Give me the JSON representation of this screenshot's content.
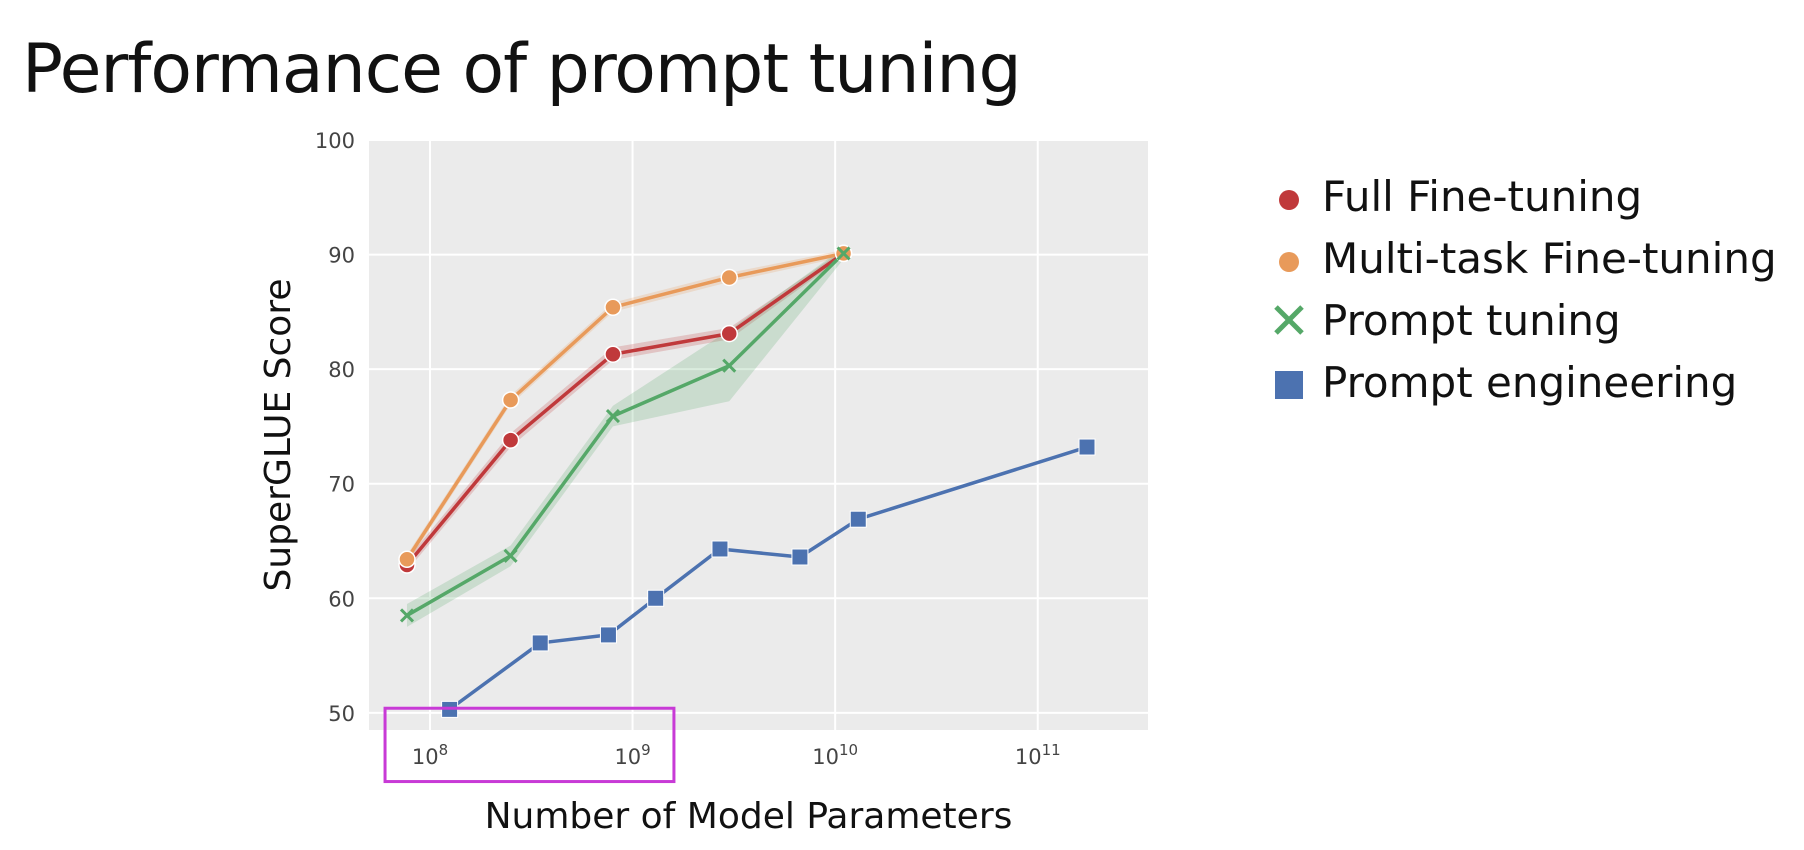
{
  "title": "Performance of prompt tuning",
  "colors": {
    "background": "#ffffff",
    "plot_bg": "#ebebeb",
    "grid": "#ffffff",
    "highlight_box": "#c83ad6"
  },
  "chart_data": {
    "type": "line",
    "title": "",
    "xlabel": "Number of Model Parameters",
    "ylabel": "SuperGLUE Score",
    "xscale": "log",
    "xlim": [
      50000000,
      350000000000
    ],
    "ylim": [
      48.5,
      100
    ],
    "grid": true,
    "legend_position": "right",
    "xticks": [
      {
        "value": 100000000,
        "base": "10",
        "exp": "8"
      },
      {
        "value": 1000000000,
        "base": "10",
        "exp": "9"
      },
      {
        "value": 10000000000,
        "base": "10",
        "exp": "10"
      },
      {
        "value": 100000000000,
        "base": "10",
        "exp": "11"
      }
    ],
    "yticks": [
      50,
      60,
      70,
      80,
      90,
      100
    ],
    "series": [
      {
        "name": "Full Fine-tuning",
        "color": "#c0393b",
        "marker": "circle",
        "x": [
          77000000,
          250000000,
          800000000,
          3000000000,
          11000000000
        ],
        "y": [
          62.9,
          73.8,
          81.3,
          83.1,
          90.1
        ],
        "band": [
          [
            62.4,
            63.4
          ],
          [
            73.2,
            74.4
          ],
          [
            80.8,
            81.9
          ],
          [
            82.6,
            83.6
          ],
          [
            89.8,
            90.4
          ]
        ]
      },
      {
        "name": "Multi-task Fine-tuning",
        "color": "#e89a5a",
        "marker": "circle",
        "x": [
          77000000,
          250000000,
          800000000,
          3000000000,
          11000000000
        ],
        "y": [
          63.4,
          77.3,
          85.4,
          88.0,
          90.1
        ],
        "band": [
          [
            63.0,
            63.8
          ],
          [
            76.9,
            77.7
          ],
          [
            85.0,
            85.8
          ],
          [
            87.6,
            88.4
          ],
          [
            89.8,
            90.4
          ]
        ]
      },
      {
        "name": "Prompt tuning",
        "color": "#55a868",
        "marker": "x",
        "x": [
          77000000,
          250000000,
          800000000,
          3000000000,
          11000000000
        ],
        "y": [
          58.5,
          63.7,
          75.9,
          80.3,
          90.1
        ],
        "band": [
          [
            57.5,
            59.5
          ],
          [
            62.8,
            64.6
          ],
          [
            75.0,
            76.8
          ],
          [
            77.2,
            83.4
          ],
          [
            89.6,
            90.6
          ]
        ]
      },
      {
        "name": "Prompt engineering",
        "color": "#4c72b0",
        "marker": "square",
        "x": [
          125000000,
          350000000,
          760000000,
          1300000000,
          2700000000,
          6700000000,
          13000000000,
          175000000000
        ],
        "y": [
          50.3,
          56.1,
          56.8,
          60.0,
          64.3,
          63.6,
          66.9,
          73.2
        ]
      }
    ]
  },
  "highlight_box": {
    "x_range": [
      60000000,
      1600000000
    ],
    "y_range": [
      44.0,
      50.4
    ]
  }
}
